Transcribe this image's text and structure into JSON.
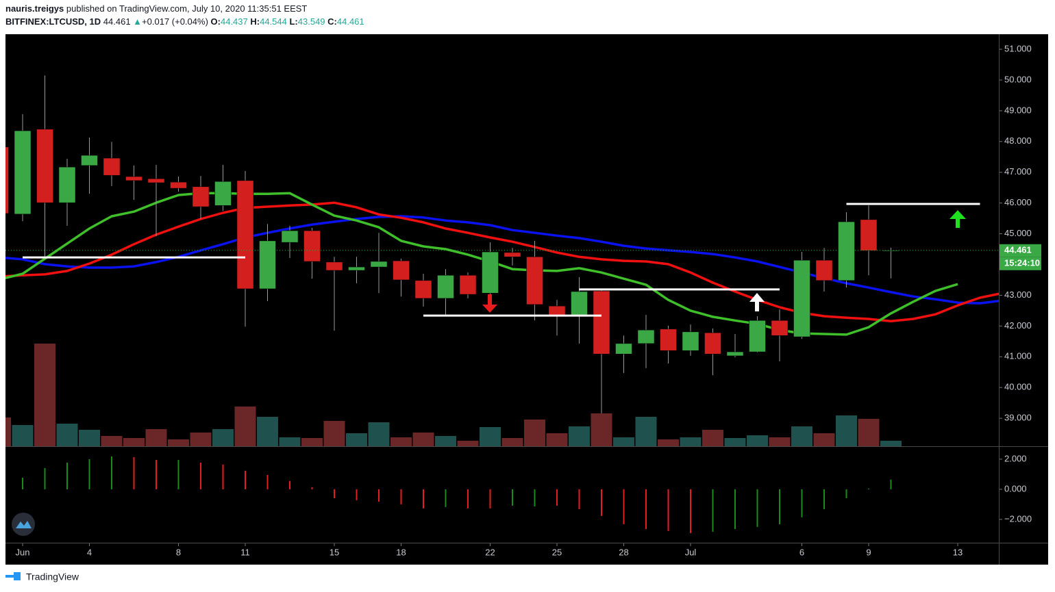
{
  "header": {
    "author": "nauris.treigys",
    "published": "published on TradingView.com, July 10, 2020 11:35:51 EEST",
    "symbol": "BITFINEX:LTCUSD, 1D",
    "last": "44.461",
    "arrow": "▲",
    "change": "+0.017 (+0.04%)",
    "o_label": "O:",
    "o": "44.437",
    "h_label": "H:",
    "h": "44.544",
    "l_label": "L:",
    "l": "43.549",
    "c_label": "C:",
    "c": "44.461"
  },
  "footer": {
    "brand": "TradingView"
  },
  "chart_data": {
    "type": "candlestick",
    "x": [
      "2020-05-31",
      "2020-06-01",
      "2020-06-02",
      "2020-06-03",
      "2020-06-04",
      "2020-06-05",
      "2020-06-06",
      "2020-06-07",
      "2020-06-08",
      "2020-06-09",
      "2020-06-10",
      "2020-06-11",
      "2020-06-12",
      "2020-06-13",
      "2020-06-14",
      "2020-06-15",
      "2020-06-16",
      "2020-06-17",
      "2020-06-18",
      "2020-06-19",
      "2020-06-20",
      "2020-06-21",
      "2020-06-22",
      "2020-06-23",
      "2020-06-24",
      "2020-06-25",
      "2020-06-26",
      "2020-06-27",
      "2020-06-28",
      "2020-06-29",
      "2020-06-30",
      "2020-07-01",
      "2020-07-02",
      "2020-07-03",
      "2020-07-04",
      "2020-07-05",
      "2020-07-06",
      "2020-07-07",
      "2020-07-08",
      "2020-07-09",
      "2020-07-10",
      "2020-07-11",
      "2020-07-12",
      "2020-07-13",
      "2020-07-14",
      "2020-07-15"
    ],
    "xticks": [
      {
        "value": "2020-06-01",
        "label": "Jun"
      },
      {
        "value": "2020-06-04",
        "label": "4"
      },
      {
        "value": "2020-06-08",
        "label": "8"
      },
      {
        "value": "2020-06-11",
        "label": "11"
      },
      {
        "value": "2020-06-15",
        "label": "15"
      },
      {
        "value": "2020-06-18",
        "label": "18"
      },
      {
        "value": "2020-06-22",
        "label": "22"
      },
      {
        "value": "2020-06-25",
        "label": "25"
      },
      {
        "value": "2020-06-28",
        "label": "28"
      },
      {
        "value": "2020-07-01",
        "label": "Jul"
      },
      {
        "value": "2020-07-06",
        "label": "6"
      },
      {
        "value": "2020-07-09",
        "label": "9"
      },
      {
        "value": "2020-07-13",
        "label": "13"
      }
    ],
    "open": [
      47.82,
      45.64,
      48.4,
      46.01,
      47.22,
      47.46,
      46.86,
      46.79,
      46.68,
      46.53,
      45.92,
      46.73,
      43.21,
      44.72,
      45.1,
      44.08,
      43.81,
      43.92,
      44.12,
      43.48,
      42.9,
      43.65,
      43.07,
      44.39,
      44.25,
      42.65,
      42.36,
      43.14,
      41.09,
      41.43,
      41.9,
      41.2,
      41.78,
      41.03,
      41.16,
      42.18,
      41.65,
      44.14,
      43.48,
      45.46,
      44.437,
      null,
      null,
      null,
      null,
      null
    ],
    "high": [
      47.9,
      48.89,
      50.15,
      47.44,
      48.13,
      47.99,
      47.22,
      47.24,
      46.86,
      46.88,
      47.24,
      47.04,
      45.32,
      45.26,
      45.19,
      44.25,
      44.25,
      45.03,
      44.19,
      43.7,
      43.85,
      43.74,
      44.72,
      44.54,
      44.77,
      42.85,
      43.59,
      43.21,
      41.69,
      42.36,
      42.01,
      42.05,
      41.92,
      41.74,
      42.32,
      42.54,
      44.41,
      44.54,
      45.7,
      45.92,
      44.544,
      null,
      null,
      null,
      null,
      null
    ],
    "low": [
      45.4,
      45.41,
      44.2,
      45.26,
      46.3,
      46.55,
      46.1,
      44.92,
      46.37,
      45.48,
      45.75,
      41.98,
      42.81,
      44.21,
      43.54,
      41.85,
      43.39,
      43.07,
      42.96,
      42.63,
      42.36,
      42.9,
      43.01,
      43.97,
      42.18,
      41.69,
      41.43,
      39.16,
      40.47,
      40.63,
      40.78,
      41.03,
      40.4,
      40.98,
      41.14,
      40.85,
      41.58,
      43.12,
      43.25,
      43.65,
      43.549,
      null,
      null,
      null,
      null,
      null
    ],
    "close": [
      45.66,
      48.35,
      46.01,
      47.17,
      47.55,
      46.9,
      46.73,
      46.66,
      46.48,
      45.88,
      46.7,
      43.21,
      44.77,
      45.1,
      44.1,
      43.81,
      43.92,
      44.1,
      43.5,
      42.9,
      43.65,
      43.03,
      44.41,
      44.25,
      42.7,
      42.36,
      43.12,
      41.09,
      41.43,
      41.87,
      41.2,
      41.81,
      41.09,
      41.16,
      42.18,
      41.69,
      44.14,
      43.48,
      45.39,
      44.45,
      44.461,
      null,
      null,
      null,
      null,
      null
    ],
    "up_color": "#3aa845",
    "down_color": "#d3201f",
    "ylim": [
      38.09,
      51.49
    ],
    "yticks": [
      {
        "value": 39,
        "label": "39.000"
      },
      {
        "value": 40,
        "label": "40.000"
      },
      {
        "value": 41,
        "label": "41.000"
      },
      {
        "value": 42,
        "label": "42.000"
      },
      {
        "value": 43,
        "label": "43.000"
      },
      {
        "value": 44,
        "label": "44.000"
      },
      {
        "value": 45,
        "label": "45.000"
      },
      {
        "value": 46,
        "label": "46.000"
      },
      {
        "value": 47,
        "label": "47.000"
      },
      {
        "value": 48,
        "label": "48.000"
      },
      {
        "value": 49,
        "label": "49.000"
      },
      {
        "value": 50,
        "label": "50.000"
      },
      {
        "value": 51,
        "label": "51.000"
      }
    ],
    "last_price": 44.461,
    "last_color": "#3aa845",
    "countdown": "15:24:10",
    "lines": [
      {
        "color": "#0a12f0",
        "values": [
          44.23,
          44.17,
          44.01,
          43.94,
          43.9,
          43.9,
          43.94,
          44.08,
          44.25,
          44.46,
          44.66,
          44.88,
          45.03,
          45.17,
          45.3,
          45.39,
          45.48,
          45.55,
          45.57,
          45.53,
          45.43,
          45.37,
          45.28,
          45.12,
          45.03,
          44.94,
          44.86,
          44.74,
          44.61,
          44.52,
          44.46,
          44.41,
          44.34,
          44.23,
          44.1,
          43.92,
          43.74,
          43.56,
          43.39,
          43.25,
          43.1,
          42.96,
          42.87,
          42.76,
          42.74,
          42.83
        ]
      },
      {
        "color": "#f01010",
        "values": [
          43.61,
          43.65,
          43.68,
          43.79,
          44.03,
          44.32,
          44.66,
          44.97,
          45.23,
          45.48,
          45.68,
          45.84,
          45.88,
          45.92,
          45.95,
          46.01,
          45.86,
          45.63,
          45.52,
          45.37,
          45.17,
          45.03,
          44.88,
          44.74,
          44.57,
          44.39,
          44.25,
          44.17,
          44.12,
          44.1,
          44.01,
          43.74,
          43.41,
          43.12,
          42.85,
          42.61,
          42.43,
          42.32,
          42.27,
          42.23,
          42.16,
          42.23,
          42.38,
          42.67,
          42.92,
          43.07
        ]
      },
      {
        "color": "#3fbf2a",
        "values": [
          43.52,
          43.7,
          44.19,
          44.68,
          45.17,
          45.57,
          45.72,
          46.01,
          46.26,
          46.32,
          46.32,
          46.3,
          46.3,
          46.32,
          45.95,
          45.59,
          45.43,
          45.21,
          44.77,
          44.59,
          44.5,
          44.32,
          44.1,
          43.85,
          43.81,
          43.79,
          43.88,
          43.74,
          43.54,
          43.34,
          42.85,
          42.5,
          42.3,
          42.18,
          42.07,
          41.87,
          41.76,
          41.74,
          41.72,
          41.96,
          42.41,
          42.79,
          43.14,
          43.36,
          null,
          null
        ]
      }
    ],
    "levels": [
      {
        "from": "2020-06-01",
        "to": "2020-06-11",
        "value": 44.23
      },
      {
        "from": "2020-06-19",
        "to": "2020-06-27",
        "value": 42.34
      },
      {
        "from": "2020-06-26",
        "to": "2020-07-05",
        "value": 43.19
      },
      {
        "from": "2020-07-08",
        "to": "2020-07-14",
        "value": 45.97
      }
    ],
    "level_color": "#ffffff",
    "volume": {
      "up_color": "#1f524f",
      "down_color": "#6b2727",
      "values": [
        42,
        31,
        150,
        33,
        24,
        15,
        12,
        25,
        10,
        20,
        25,
        58,
        43,
        13,
        12,
        37,
        19,
        35,
        13,
        20,
        15,
        8,
        28,
        12,
        39,
        19,
        29,
        48,
        13,
        43,
        10,
        13,
        24,
        12,
        16,
        13,
        29,
        19,
        45,
        40,
        8,
        null,
        null,
        null,
        null,
        null
      ]
    },
    "oscillator": {
      "ylim": [
        -3.55,
        2.77
      ],
      "yticks": [
        {
          "value": 2,
          "label": "2.000"
        },
        {
          "value": 0,
          "label": "0.000"
        },
        {
          "value": -2,
          "label": "−2.000"
        }
      ],
      "values": [
        null,
        0.77,
        1.41,
        1.77,
        2.0,
        2.18,
        2.14,
        1.95,
        1.95,
        1.77,
        1.64,
        1.23,
        0.95,
        0.55,
        0.14,
        -0.59,
        -0.73,
        -0.82,
        -1.0,
        -1.27,
        -1.18,
        -1.27,
        -1.27,
        -1.09,
        -1.14,
        -1.09,
        -1.32,
        -1.77,
        -2.32,
        -2.64,
        -2.77,
        -2.91,
        -2.82,
        -2.64,
        -2.5,
        -2.32,
        -1.86,
        -1.32,
        -0.59,
        0.05,
        0.64,
        null,
        null,
        null,
        null,
        null
      ],
      "colors": [
        null,
        "#1a8c1a",
        "#1a8c1a",
        "#1a8c1a",
        "#1a8c1a",
        "#1a8c1a",
        "#e81c1c",
        "#e81c1c",
        "#1a8c1a",
        "#e81c1c",
        "#e81c1c",
        "#e81c1c",
        "#e81c1c",
        "#e81c1c",
        "#e81c1c",
        "#e81c1c",
        "#e81c1c",
        "#e81c1c",
        "#e81c1c",
        "#e81c1c",
        "#1a8c1a",
        "#e81c1c",
        "#e81c1c",
        "#1a8c1a",
        "#1a8c1a",
        "#e81c1c",
        "#e81c1c",
        "#e81c1c",
        "#e81c1c",
        "#e81c1c",
        "#e81c1c",
        "#e81c1c",
        "#1a8c1a",
        "#1a8c1a",
        "#1a8c1a",
        "#1a8c1a",
        "#1a8c1a",
        "#1a8c1a",
        "#1a8c1a",
        "#1a8c1a",
        "#1a8c1a",
        null,
        null,
        null,
        null,
        null
      ]
    }
  }
}
